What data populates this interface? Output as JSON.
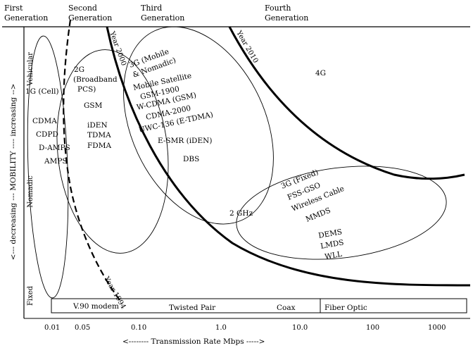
{
  "generations": [
    "First Generation",
    "Second Generation",
    "Third Generation",
    "Fourth Generation"
  ],
  "axes": {
    "x_label": "<-------- Transmission Rate Mbps ----->",
    "x_ticks": [
      "0.01",
      "0.05",
      "0.10",
      "1.0",
      "10.0",
      "100",
      "1000"
    ],
    "y_label": "<--- decreasing --- MOBILITY ---- increasing -->",
    "y_levels": [
      "Vehicular",
      "Nomadic",
      "Fixed"
    ]
  },
  "boundaries": {
    "year_1994": "Year 1994",
    "year_2000": "Year 2000",
    "year_2010": "Year 2010"
  },
  "regions": {
    "first": [
      "1G (Cell)",
      "CDMA",
      "CDPD",
      "D-AMPS",
      "AMPS"
    ],
    "second": [
      "2G",
      "(Broadband",
      "PCS)",
      "GSM",
      "iDEN",
      "TDMA",
      "FDMA"
    ],
    "third_mobile": [
      "3G (Mobile",
      "& Nomadic)",
      "Mobile Satellite",
      "GSM-1900",
      "W-CDMA (GSM)",
      "CDMA-2000",
      "UWC-136 (E-TDMA)",
      "E-SMR (iDEN)",
      "DBS"
    ],
    "fourth": "4G",
    "three_fixed": [
      "3G (Fixed)",
      "FSS-GSO",
      "Wireless Cable",
      "MMDS",
      "DEMS",
      "LMDS",
      "WLL"
    ],
    "ghz": "2 GHz"
  },
  "media": [
    "V.90 modem",
    "Twisted Pair",
    "Coax",
    "Fiber Optic"
  ]
}
